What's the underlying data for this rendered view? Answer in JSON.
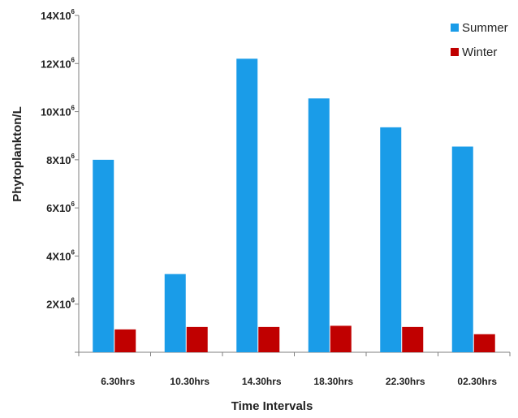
{
  "chart_data": {
    "type": "bar",
    "title": "",
    "xlabel": "Time Intervals",
    "ylabel": "Phytoplankton/L",
    "categories": [
      "6.30hrs",
      "10.30hrs",
      "14.30hrs",
      "18.30hrs",
      "22.30hrs",
      "02.30hrs"
    ],
    "series": [
      {
        "name": "Summer",
        "color": "#1a9ce8",
        "values": [
          8000000,
          3250000,
          12200000,
          10550000,
          9350000,
          8550000
        ]
      },
      {
        "name": "Winter",
        "color": "#c00000",
        "values": [
          950000,
          1050000,
          1050000,
          1100000,
          1050000,
          750000
        ]
      }
    ],
    "ylim": [
      0,
      14000000
    ],
    "yticks": [
      {
        "value": 2000000,
        "base": "2X10",
        "exp": "6"
      },
      {
        "value": 4000000,
        "base": "4X10",
        "exp": "6"
      },
      {
        "value": 6000000,
        "base": "6X10",
        "exp": "6"
      },
      {
        "value": 8000000,
        "base": "8X10",
        "exp": "6"
      },
      {
        "value": 10000000,
        "base": "10X10",
        "exp": "6"
      },
      {
        "value": 12000000,
        "base": "12X10",
        "exp": "6"
      },
      {
        "value": 14000000,
        "base": "14X10",
        "exp": "6"
      }
    ],
    "grid": false,
    "legend_position": "top-right"
  }
}
